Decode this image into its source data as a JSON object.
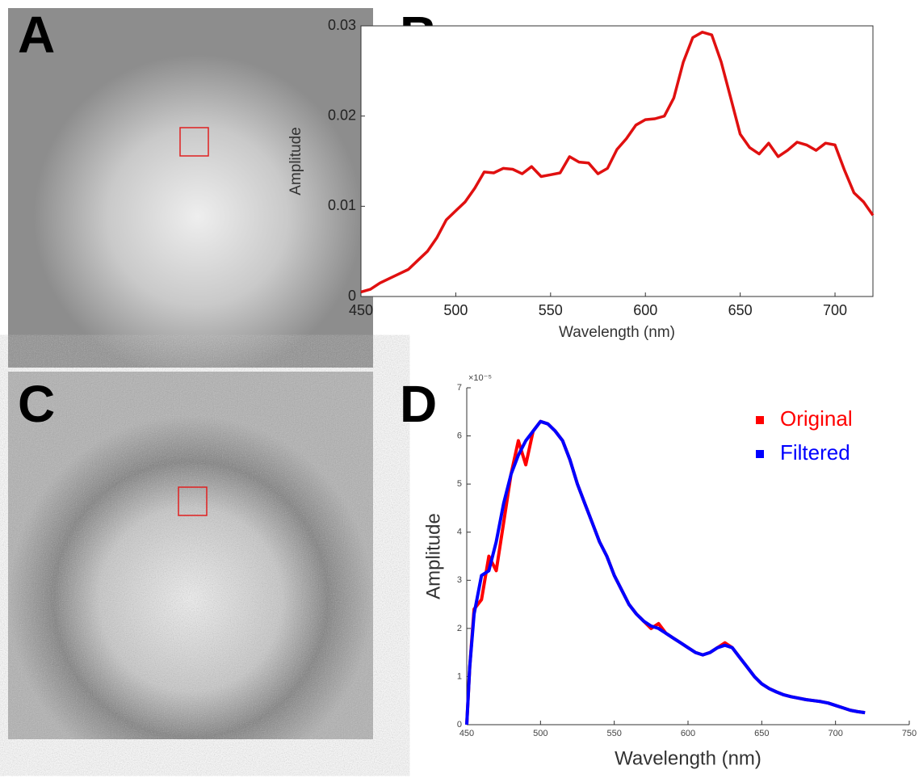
{
  "panel_labels": [
    "A",
    "B",
    "C",
    "D"
  ],
  "chart_data": [
    {
      "type": "line",
      "x_label": "Wavelength (nm)",
      "y_label": "Amplitude",
      "x": [
        450,
        455,
        460,
        465,
        470,
        475,
        480,
        485,
        490,
        495,
        500,
        505,
        510,
        515,
        520,
        525,
        530,
        535,
        540,
        545,
        550,
        555,
        560,
        565,
        570,
        575,
        580,
        585,
        590,
        595,
        600,
        605,
        610,
        615,
        620,
        625,
        630,
        635,
        640,
        645,
        650,
        655,
        660,
        665,
        670,
        675,
        680,
        685,
        690,
        695,
        700,
        705,
        710,
        715,
        720
      ],
      "values": [
        0.0005,
        0.0008,
        0.0015,
        0.002,
        0.0025,
        0.003,
        0.004,
        0.005,
        0.0065,
        0.0085,
        0.0095,
        0.0105,
        0.012,
        0.0138,
        0.0137,
        0.0142,
        0.0141,
        0.0136,
        0.0144,
        0.0133,
        0.0135,
        0.0137,
        0.0155,
        0.0149,
        0.0148,
        0.0136,
        0.0142,
        0.0163,
        0.0175,
        0.019,
        0.0196,
        0.0197,
        0.02,
        0.022,
        0.026,
        0.0287,
        0.0293,
        0.029,
        0.026,
        0.022,
        0.018,
        0.0165,
        0.0158,
        0.017,
        0.0155,
        0.0162,
        0.0171,
        0.0168,
        0.0162,
        0.017,
        0.0168,
        0.014,
        0.0115,
        0.0105,
        0.009
      ],
      "color": "#e01010",
      "xlim": [
        450,
        720
      ],
      "xticks": [
        450,
        500,
        550,
        600,
        650,
        700
      ],
      "ylim": [
        0,
        0.03
      ],
      "yticks": [
        0,
        0.01,
        0.02,
        0.03
      ],
      "frame": true
    },
    {
      "type": "line",
      "x_label": "Wavelength (nm)",
      "y_label": "Amplitude",
      "y_scale_label": "×10⁻⁵",
      "x": [
        450,
        452,
        455,
        460,
        465,
        470,
        475,
        480,
        485,
        490,
        495,
        500,
        505,
        510,
        515,
        520,
        525,
        530,
        535,
        540,
        545,
        550,
        555,
        560,
        565,
        570,
        575,
        580,
        585,
        590,
        595,
        600,
        605,
        610,
        615,
        620,
        625,
        630,
        635,
        640,
        645,
        650,
        655,
        660,
        665,
        670,
        675,
        680,
        685,
        690,
        695,
        700,
        705,
        710,
        715,
        720
      ],
      "series": [
        {
          "name": "Original",
          "color": "#ff0000",
          "values": [
            0,
            1.2,
            2.4,
            2.6,
            3.5,
            3.2,
            4.2,
            5.2,
            5.9,
            5.4,
            6.1,
            6.3,
            6.25,
            6.1,
            5.9,
            5.5,
            5.0,
            4.6,
            4.2,
            3.8,
            3.5,
            3.1,
            2.8,
            2.5,
            2.3,
            2.15,
            2.0,
            2.1,
            1.9,
            1.8,
            1.7,
            1.6,
            1.5,
            1.45,
            1.5,
            1.6,
            1.7,
            1.6,
            1.4,
            1.2,
            1.0,
            0.85,
            0.75,
            0.68,
            0.62,
            0.58,
            0.55,
            0.52,
            0.5,
            0.48,
            0.45,
            0.4,
            0.35,
            0.3,
            0.27,
            0.25
          ]
        },
        {
          "name": "Filtered",
          "color": "#0000ff",
          "values": [
            0,
            1.2,
            2.3,
            3.1,
            3.2,
            3.8,
            4.6,
            5.2,
            5.6,
            5.9,
            6.1,
            6.3,
            6.25,
            6.1,
            5.9,
            5.5,
            5.0,
            4.6,
            4.2,
            3.8,
            3.5,
            3.1,
            2.8,
            2.5,
            2.3,
            2.15,
            2.05,
            2.0,
            1.9,
            1.8,
            1.7,
            1.6,
            1.5,
            1.45,
            1.5,
            1.6,
            1.65,
            1.6,
            1.4,
            1.2,
            1.0,
            0.85,
            0.75,
            0.68,
            0.62,
            0.58,
            0.55,
            0.52,
            0.5,
            0.48,
            0.45,
            0.4,
            0.35,
            0.3,
            0.27,
            0.25
          ]
        }
      ],
      "xlim": [
        450,
        750
      ],
      "xticks": [
        450,
        500,
        550,
        600,
        650,
        700,
        750
      ],
      "ylim": [
        0,
        7
      ],
      "yticks": [
        0,
        1,
        2,
        3,
        4,
        5,
        6,
        7
      ],
      "frame": false,
      "legend": "upper right"
    }
  ]
}
